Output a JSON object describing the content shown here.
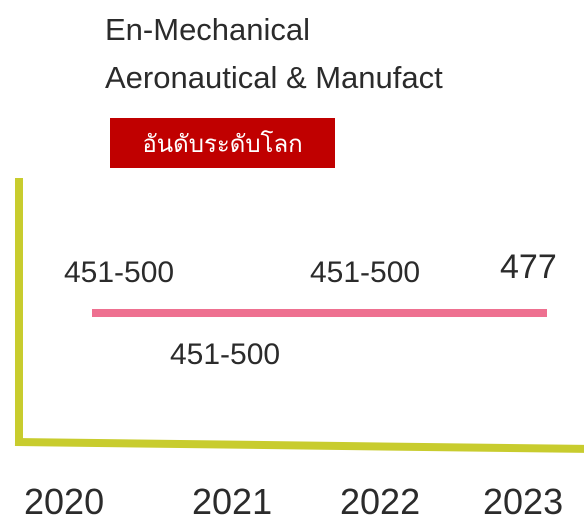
{
  "title": [
    "En-Mechanical",
    "Aeronautical & Manufact"
  ],
  "badge": "อันดับระดับโลก",
  "rankings": [
    {
      "year": "2020",
      "rank": "451-500"
    },
    {
      "year": "2021",
      "rank": "451-500"
    },
    {
      "year": "2022",
      "rank": "451-500"
    },
    {
      "year": "2023",
      "rank": "477"
    }
  ]
}
